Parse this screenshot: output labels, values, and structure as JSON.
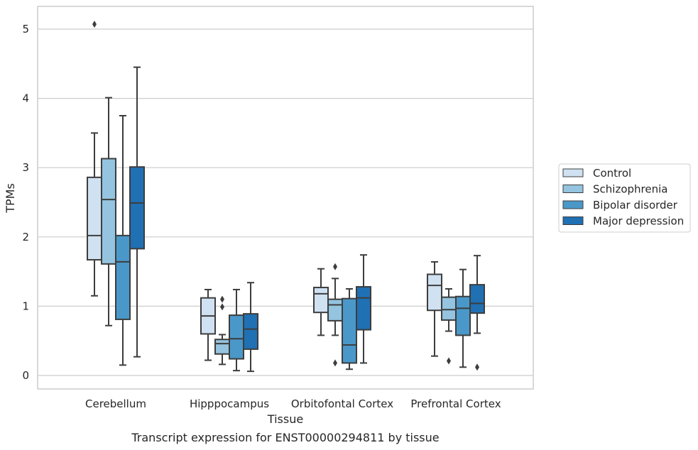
{
  "chart_data": {
    "type": "boxplot",
    "title": "Transcript expression for ENST00000294811 by tissue",
    "xlabel": "Tissue",
    "ylabel": "TPMs",
    "ylim": [
      -0.2,
      5.32
    ],
    "yticks": [
      0,
      1,
      2,
      3,
      4,
      5
    ],
    "grid": true,
    "legend_position": "right",
    "categories": [
      "Cerebellum",
      "Hipppocampus",
      "Orbitofontal Cortex",
      "Prefrontal Cortex"
    ],
    "series": [
      {
        "name": "Control",
        "color": "#d0e1f2",
        "boxes": [
          {
            "whisker_low": 1.15,
            "q1": 1.67,
            "median": 2.02,
            "q3": 2.86,
            "whisker_high": 3.5,
            "outliers": []
          },
          {
            "whisker_low": 0.22,
            "q1": 0.6,
            "median": 0.86,
            "q3": 1.12,
            "whisker_high": 1.24,
            "outliers": []
          },
          {
            "whisker_low": 0.58,
            "q1": 0.91,
            "median": 1.18,
            "q3": 1.27,
            "whisker_high": 1.54,
            "outliers": []
          },
          {
            "whisker_low": 0.28,
            "q1": 0.94,
            "median": 1.3,
            "q3": 1.46,
            "whisker_high": 1.64,
            "outliers": []
          }
        ]
      },
      {
        "name": "Schizophrenia",
        "color": "#94c4df",
        "boxes": [
          {
            "whisker_low": 0.72,
            "q1": 1.61,
            "median": 2.54,
            "q3": 3.13,
            "whisker_high": 4.01,
            "outliers": []
          },
          {
            "whisker_low": 0.16,
            "q1": 0.31,
            "median": 0.46,
            "q3": 0.52,
            "whisker_high": 0.59,
            "outliers": [
              1.1,
              0.99
            ]
          },
          {
            "whisker_low": 0.58,
            "q1": 0.79,
            "median": 1.02,
            "q3": 1.1,
            "whisker_high": 1.4,
            "outliers": [
              1.57,
              0.18
            ]
          },
          {
            "whisker_low": 0.64,
            "q1": 0.8,
            "median": 0.95,
            "q3": 1.13,
            "whisker_high": 1.25,
            "outliers": [
              0.21
            ]
          }
        ]
      },
      {
        "name": "Bipolar disorder",
        "color": "#4a98c9",
        "boxes": [
          {
            "whisker_low": 0.15,
            "q1": 0.81,
            "median": 1.64,
            "q3": 2.02,
            "whisker_high": 3.75,
            "outliers": []
          },
          {
            "whisker_low": 0.07,
            "q1": 0.24,
            "median": 0.53,
            "q3": 0.87,
            "whisker_high": 1.24,
            "outliers": []
          },
          {
            "whisker_low": 0.09,
            "q1": 0.18,
            "median": 0.44,
            "q3": 1.11,
            "whisker_high": 1.25,
            "outliers": []
          },
          {
            "whisker_low": 0.12,
            "q1": 0.58,
            "median": 0.97,
            "q3": 1.14,
            "whisker_high": 1.53,
            "outliers": []
          }
        ]
      },
      {
        "name": "Major depression",
        "color": "#2070b4",
        "boxes": [
          {
            "whisker_low": 0.27,
            "q1": 1.83,
            "median": 2.49,
            "q3": 3.01,
            "whisker_high": 4.45,
            "outliers": []
          },
          {
            "whisker_low": 0.06,
            "q1": 0.38,
            "median": 0.67,
            "q3": 0.89,
            "whisker_high": 1.34,
            "outliers": []
          },
          {
            "whisker_low": 0.18,
            "q1": 0.66,
            "median": 1.12,
            "q3": 1.28,
            "whisker_high": 1.74,
            "outliers": []
          },
          {
            "whisker_low": 0.61,
            "q1": 0.9,
            "median": 1.04,
            "q3": 1.31,
            "whisker_high": 1.73,
            "outliers": [
              0.12
            ]
          }
        ]
      }
    ],
    "cerebellum_control_outliers": [
      5.07
    ]
  }
}
